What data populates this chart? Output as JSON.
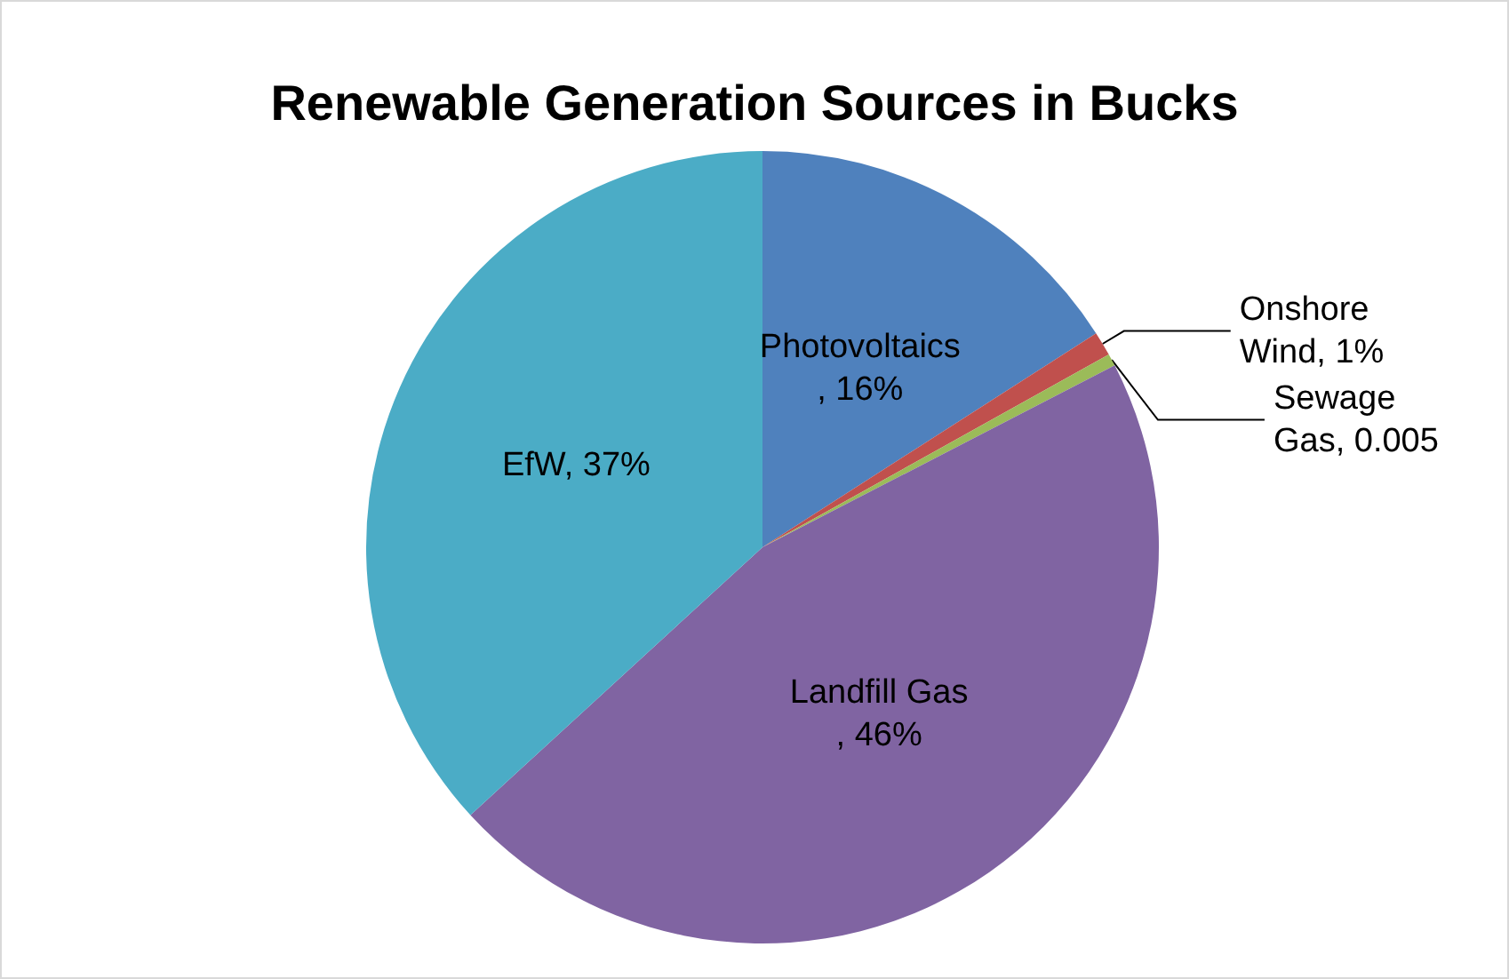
{
  "chart_data": {
    "type": "pie",
    "title": "Renewable Generation Sources in Bucks",
    "categories": [
      "Photovoltaics",
      "Onshore Wind",
      "Sewage Gas",
      "Landfill Gas",
      "EfW"
    ],
    "values": [
      0.16,
      0.01,
      0.005,
      0.46,
      0.37
    ],
    "value_labels": [
      ", 16%",
      ", 1%",
      ", 0.005",
      ", 46%",
      ", 37%"
    ],
    "colors": [
      "#4f81bd",
      "#c0504d",
      "#9bbb59",
      "#8064a2",
      "#4bacc6"
    ]
  }
}
